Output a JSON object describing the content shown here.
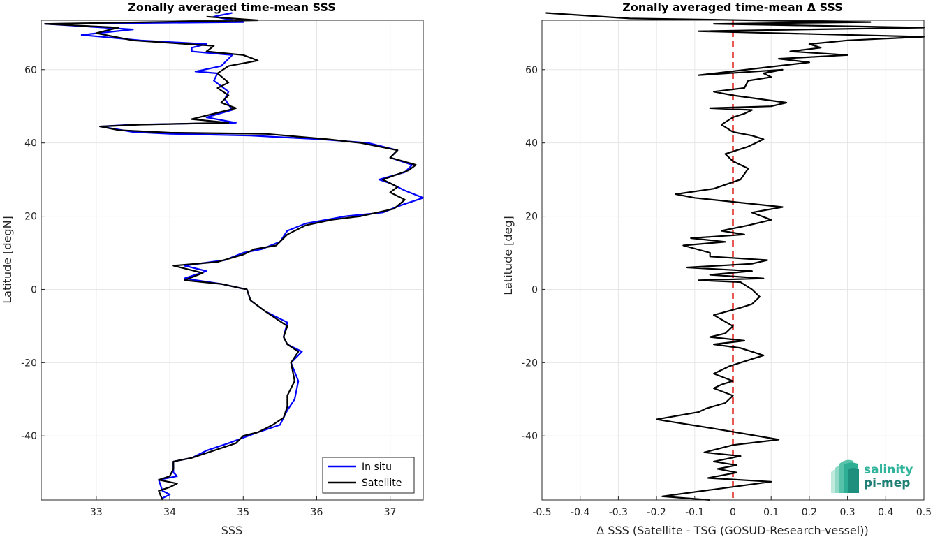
{
  "chart_data": [
    {
      "type": "line",
      "title": "Zonally averaged time-mean SSS",
      "xlabel": "SSS",
      "ylabel": "Latitude [degN]",
      "xlim": [
        32.25,
        37.45
      ],
      "ylim": [
        -57.5,
        73.5
      ],
      "xticks": [
        33,
        34,
        35,
        36,
        37
      ],
      "yticks": [
        -40,
        -20,
        0,
        20,
        40,
        60
      ],
      "grid": true,
      "legend_position": "bottom-right",
      "series": [
        {
          "name": "In situ",
          "color": "#0000ff",
          "points": [
            [
              33.9,
              -57
            ],
            [
              34.0,
              -56
            ],
            [
              33.9,
              -55
            ],
            [
              33.85,
              -52
            ],
            [
              34.1,
              -51
            ],
            [
              34.05,
              -50
            ],
            [
              34.05,
              -47
            ],
            [
              34.3,
              -46
            ],
            [
              34.5,
              -44
            ],
            [
              34.8,
              -42
            ],
            [
              35.2,
              -39
            ],
            [
              35.5,
              -37
            ],
            [
              35.55,
              -35
            ],
            [
              35.6,
              -33
            ],
            [
              35.7,
              -30
            ],
            [
              35.75,
              -25
            ],
            [
              35.65,
              -20
            ],
            [
              35.8,
              -17
            ],
            [
              35.6,
              -15
            ],
            [
              35.55,
              -13
            ],
            [
              35.6,
              -9
            ],
            [
              35.3,
              -6
            ],
            [
              35.1,
              -3
            ],
            [
              35.05,
              0
            ],
            [
              34.7,
              1.5
            ],
            [
              34.2,
              3
            ],
            [
              34.5,
              5
            ],
            [
              34.2,
              6.5
            ],
            [
              34.75,
              8
            ],
            [
              35.0,
              10
            ],
            [
              35.25,
              11
            ],
            [
              35.5,
              13
            ],
            [
              35.6,
              16
            ],
            [
              35.85,
              18
            ],
            [
              36.4,
              20
            ],
            [
              36.9,
              21
            ],
            [
              37.15,
              23
            ],
            [
              37.45,
              25
            ],
            [
              37.2,
              27
            ],
            [
              37.0,
              29
            ],
            [
              36.85,
              30
            ],
            [
              37.2,
              32
            ],
            [
              37.3,
              34
            ],
            [
              37.0,
              36
            ],
            [
              37.1,
              38
            ],
            [
              36.7,
              40
            ],
            [
              36.05,
              41
            ],
            [
              35.1,
              42
            ],
            [
              34.0,
              42.5
            ],
            [
              33.5,
              43
            ],
            [
              33.05,
              44.5
            ],
            [
              33.5,
              45
            ],
            [
              34.9,
              45.5
            ],
            [
              34.5,
              47
            ],
            [
              34.85,
              49
            ],
            [
              34.75,
              52
            ],
            [
              34.8,
              54
            ],
            [
              34.6,
              57
            ],
            [
              34.65,
              59
            ],
            [
              34.35,
              59.5
            ],
            [
              34.7,
              61
            ],
            [
              34.85,
              64
            ],
            [
              34.3,
              65
            ],
            [
              34.3,
              66
            ],
            [
              34.5,
              67
            ],
            [
              33.6,
              68
            ],
            [
              32.8,
              69.5
            ],
            [
              33.5,
              71
            ],
            [
              32.3,
              72.5
            ],
            [
              35.0,
              73
            ],
            [
              34.6,
              74.5
            ],
            [
              34.85,
              75.5
            ]
          ]
        },
        {
          "name": "Satellite",
          "color": "#000000",
          "points": [
            [
              33.9,
              -57.5
            ],
            [
              33.85,
              -55
            ],
            [
              34.0,
              -54
            ],
            [
              34.1,
              -53
            ],
            [
              33.85,
              -52
            ],
            [
              34.0,
              -51
            ],
            [
              34.05,
              -49
            ],
            [
              34.05,
              -47
            ],
            [
              34.3,
              -46
            ],
            [
              34.6,
              -44
            ],
            [
              34.9,
              -42
            ],
            [
              35.0,
              -40
            ],
            [
              35.2,
              -39
            ],
            [
              35.4,
              -37
            ],
            [
              35.55,
              -35
            ],
            [
              35.6,
              -32
            ],
            [
              35.6,
              -29
            ],
            [
              35.7,
              -25
            ],
            [
              35.65,
              -20
            ],
            [
              35.75,
              -17
            ],
            [
              35.6,
              -15
            ],
            [
              35.55,
              -13
            ],
            [
              35.6,
              -10
            ],
            [
              35.3,
              -6
            ],
            [
              35.1,
              -3
            ],
            [
              35.05,
              0
            ],
            [
              34.7,
              1.5
            ],
            [
              34.2,
              2.5
            ],
            [
              34.45,
              4.5
            ],
            [
              34.05,
              6.5
            ],
            [
              34.65,
              7.5
            ],
            [
              35.0,
              9.5
            ],
            [
              35.15,
              11
            ],
            [
              35.45,
              12
            ],
            [
              35.6,
              15
            ],
            [
              35.85,
              17.5
            ],
            [
              36.2,
              19
            ],
            [
              36.6,
              20
            ],
            [
              37.05,
              22
            ],
            [
              37.2,
              24.5
            ],
            [
              37.0,
              26.5
            ],
            [
              37.1,
              28
            ],
            [
              36.9,
              30
            ],
            [
              37.25,
              32.5
            ],
            [
              37.35,
              34
            ],
            [
              37.0,
              36
            ],
            [
              37.1,
              38
            ],
            [
              36.6,
              40
            ],
            [
              36.15,
              41
            ],
            [
              35.3,
              42.5
            ],
            [
              34.0,
              42.8
            ],
            [
              33.3,
              43.5
            ],
            [
              33.05,
              44.5
            ],
            [
              33.6,
              45
            ],
            [
              34.8,
              45.5
            ],
            [
              34.3,
              46.5
            ],
            [
              34.9,
              49.5
            ],
            [
              34.7,
              51
            ],
            [
              34.8,
              53
            ],
            [
              34.65,
              55
            ],
            [
              34.8,
              56.5
            ],
            [
              34.65,
              59
            ],
            [
              34.8,
              61
            ],
            [
              35.2,
              62.5
            ],
            [
              35.0,
              64
            ],
            [
              34.5,
              65
            ],
            [
              34.6,
              66.5
            ],
            [
              33.5,
              68
            ],
            [
              33.0,
              70
            ],
            [
              33.3,
              71.5
            ],
            [
              32.3,
              72.5
            ],
            [
              35.2,
              73.5
            ],
            [
              34.5,
              74.5
            ]
          ]
        }
      ]
    },
    {
      "type": "line",
      "title": "Zonally averaged time-mean Δ SSS",
      "xlabel": "Δ SSS (Satellite - TSG (GOSUD-Research-vessel))",
      "ylabel": "Latitude [deg]",
      "xlim": [
        -0.5,
        0.5
      ],
      "ylim": [
        -57.5,
        73.5
      ],
      "xticks": [
        -0.5,
        -0.4,
        -0.3,
        -0.2,
        -0.1,
        0,
        0.1,
        0.2,
        0.3,
        0.4,
        0.5
      ],
      "xticklabels": [
        "-0.5",
        "-0.4",
        "-0.3",
        "-0.2",
        "-0.1",
        "0",
        "0.1",
        "0.2",
        "0.3",
        "0.4",
        "0.5"
      ],
      "yticks": [
        -40,
        -20,
        0,
        20,
        40,
        60
      ],
      "grid": true,
      "reference_line": {
        "x": 0,
        "color": "#e0201b",
        "style": "dashed"
      },
      "series": [
        {
          "color": "#000000",
          "points": [
            [
              -0.06,
              -57.5
            ],
            [
              -0.185,
              -56.5
            ],
            [
              0.1,
              -52.5
            ],
            [
              -0.065,
              -51.5
            ],
            [
              0.01,
              -50
            ],
            [
              -0.04,
              -49
            ],
            [
              0.01,
              -48
            ],
            [
              -0.05,
              -47
            ],
            [
              0.02,
              -45.5
            ],
            [
              -0.075,
              -44.5
            ],
            [
              0.0,
              -42.5
            ],
            [
              0.12,
              -41
            ],
            [
              -0.05,
              -38
            ],
            [
              -0.2,
              -35.5
            ],
            [
              -0.09,
              -33.5
            ],
            [
              -0.07,
              -32.5
            ],
            [
              -0.02,
              -31
            ],
            [
              0.0,
              -29
            ],
            [
              -0.05,
              -27
            ],
            [
              -0.03,
              -26
            ],
            [
              0.0,
              -25
            ],
            [
              -0.05,
              -23
            ],
            [
              -0.01,
              -21
            ],
            [
              0.05,
              -19
            ],
            [
              0.08,
              -18
            ],
            [
              0.02,
              -16
            ],
            [
              -0.05,
              -15
            ],
            [
              0.03,
              -14
            ],
            [
              -0.06,
              -13
            ],
            [
              -0.02,
              -12
            ],
            [
              0.0,
              -10
            ],
            [
              -0.05,
              -7
            ],
            [
              0.02,
              -5
            ],
            [
              0.05,
              -4
            ],
            [
              0.07,
              -2
            ],
            [
              0.05,
              0
            ],
            [
              0.02,
              2
            ],
            [
              -0.09,
              2.5
            ],
            [
              0.08,
              3
            ],
            [
              -0.06,
              4
            ],
            [
              0.05,
              5
            ],
            [
              -0.12,
              6
            ],
            [
              0.05,
              7
            ],
            [
              0.09,
              8
            ],
            [
              -0.06,
              9
            ],
            [
              -0.06,
              10
            ],
            [
              -0.13,
              12
            ],
            [
              -0.02,
              13
            ],
            [
              -0.11,
              14
            ],
            [
              0.03,
              15
            ],
            [
              -0.03,
              16
            ],
            [
              0.04,
              17.5
            ],
            [
              0.1,
              19
            ],
            [
              0.05,
              21
            ],
            [
              0.13,
              22.5
            ],
            [
              -0.1,
              25
            ],
            [
              -0.15,
              26
            ],
            [
              -0.05,
              27.5
            ],
            [
              0.02,
              30
            ],
            [
              0.04,
              33
            ],
            [
              0.0,
              35
            ],
            [
              -0.02,
              37
            ],
            [
              0.04,
              39
            ],
            [
              0.08,
              41
            ],
            [
              0.05,
              42
            ],
            [
              0.0,
              43
            ],
            [
              -0.03,
              45
            ],
            [
              0.0,
              47
            ],
            [
              0.03,
              48
            ],
            [
              0.05,
              49
            ],
            [
              -0.06,
              49.5
            ],
            [
              0.1,
              50
            ],
            [
              0.14,
              51
            ],
            [
              0.0,
              53
            ],
            [
              -0.05,
              54
            ],
            [
              0.03,
              55
            ],
            [
              0.04,
              57
            ],
            [
              0.1,
              58
            ],
            [
              0.08,
              59
            ],
            [
              0.13,
              60
            ],
            [
              -0.09,
              58.5
            ],
            [
              0.2,
              62
            ],
            [
              0.12,
              63
            ],
            [
              0.3,
              64
            ],
            [
              0.15,
              65
            ],
            [
              0.23,
              66
            ],
            [
              0.2,
              67
            ],
            [
              0.3,
              68
            ],
            [
              0.5,
              69
            ],
            [
              -0.09,
              70.5
            ],
            [
              0.5,
              71.5
            ],
            [
              -0.05,
              72.5
            ],
            [
              0.36,
              73
            ],
            [
              -0.27,
              74
            ],
            [
              -0.49,
              75.5
            ]
          ]
        }
      ]
    }
  ],
  "legend": {
    "items": [
      "In situ",
      "Satellite"
    ]
  },
  "logo": {
    "line1": "salinity",
    "line2": "pi-mep"
  }
}
